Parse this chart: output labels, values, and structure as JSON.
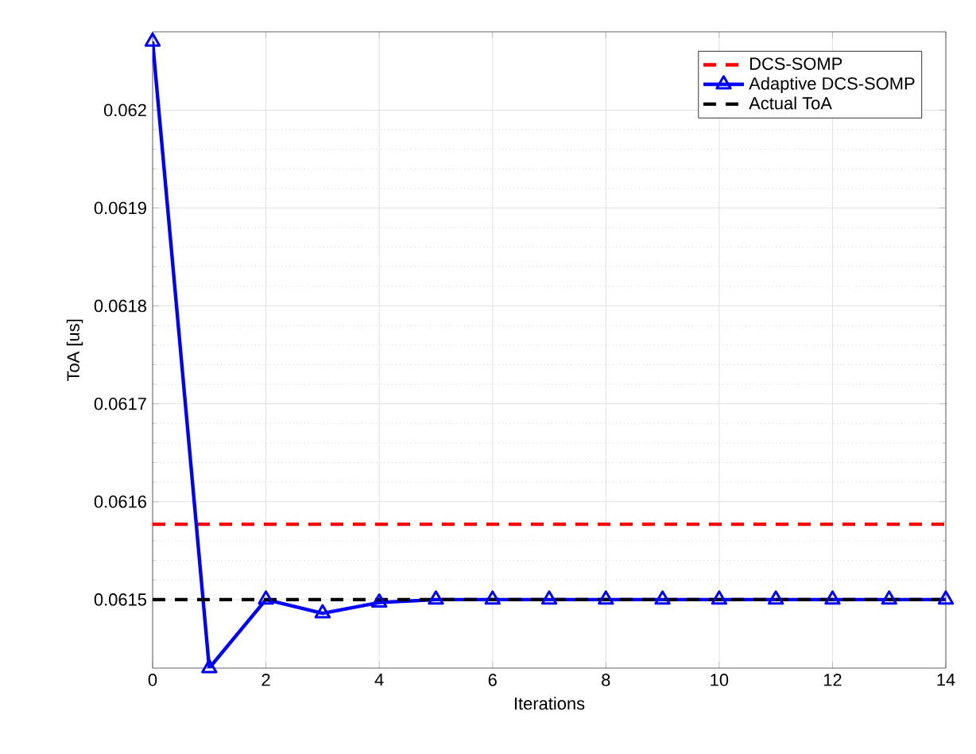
{
  "chart_data": {
    "type": "line",
    "xlabel": "Iterations",
    "ylabel": "ToA [us]",
    "xlim": [
      0,
      14
    ],
    "xticks": [
      0,
      2,
      4,
      6,
      8,
      10,
      12,
      14
    ],
    "ylim": [
      0.06143,
      0.06208
    ],
    "yticks": [
      0.0615,
      0.0616,
      0.0617,
      0.0618,
      0.0619,
      0.062
    ],
    "grid": true,
    "legend": "top right",
    "series": [
      {
        "name": "DCS-SOMP",
        "color": "#ff0000",
        "line_style": "dashed",
        "marker": "none",
        "x": [
          0,
          14
        ],
        "values": [
          0.061577,
          0.061577
        ]
      },
      {
        "name": "Adaptive DCS-SOMP",
        "color": "#0000ff",
        "line_style": "solid",
        "marker": "triangle",
        "x": [
          0,
          1,
          2,
          3,
          4,
          5,
          6,
          7,
          8,
          9,
          10,
          11,
          12,
          13,
          14
        ],
        "values": [
          0.06207,
          0.06143,
          0.0615,
          0.061486,
          0.061497,
          0.0615,
          0.0615,
          0.0615,
          0.0615,
          0.0615,
          0.0615,
          0.0615,
          0.0615,
          0.0615,
          0.0615
        ]
      },
      {
        "name": "Actual ToA",
        "color": "#000000",
        "line_style": "dashed",
        "marker": "none",
        "x": [
          0,
          14
        ],
        "values": [
          0.0615,
          0.0615
        ]
      }
    ]
  }
}
